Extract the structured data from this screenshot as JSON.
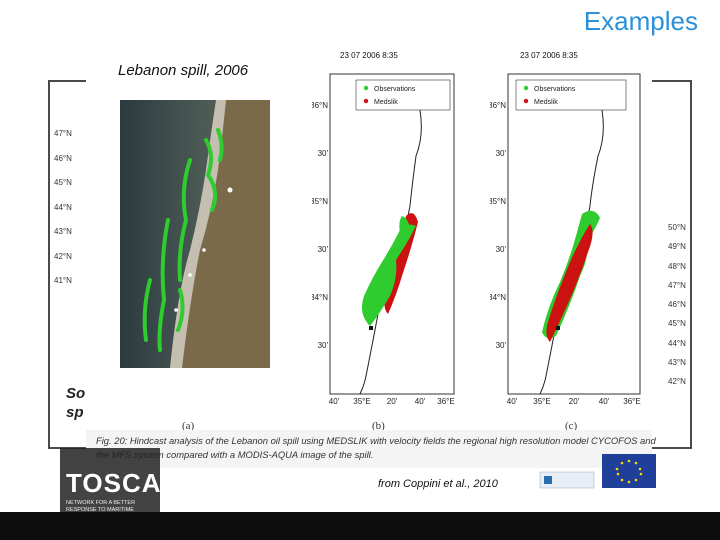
{
  "slide": {
    "title": "Examples",
    "citation": "from Coppini et al., 2010"
  },
  "background_figure": {
    "lat_left": [
      "47°N",
      "46°N",
      "45°N",
      "44°N",
      "43°N",
      "42°N",
      "41°N"
    ],
    "lat_right": [
      "50°N",
      "49°N",
      "48°N",
      "47°N",
      "46°N",
      "45°N",
      "44°N",
      "43°N",
      "42°N"
    ],
    "caption_fragment_line1": "So",
    "caption_fragment_line2": "sp"
  },
  "figure": {
    "photo_label": "Lebanon  spill,  2006",
    "panels": [
      {
        "timestamp": "23 07 2006 8:35",
        "legend": [
          "Observations",
          "Medslik"
        ],
        "lat_ticks": [
          "36°N",
          "30'",
          "35°N",
          "30'",
          "34°N",
          "30'"
        ],
        "lon_ticks": [
          "40'",
          "35°E",
          "20'",
          "40'",
          "36°E"
        ],
        "label": "(b)"
      },
      {
        "timestamp": "23 07 2006 8:35",
        "legend": [
          "Observations",
          "Medslik"
        ],
        "lat_ticks": [
          "36°N",
          "30'",
          "35°N",
          "30'",
          "34°N",
          "30'"
        ],
        "lon_ticks": [
          "40'",
          "35°E",
          "20'",
          "40'",
          "36°E"
        ],
        "label": "(c)"
      }
    ],
    "subfig_a": "(a)",
    "caption": "Fig. 20: Hindcast analysis of the Lebanon oil spill using MEDSLIK with velocity fields the regional high resolution model CYCOFOS and the MFS system compared with a MODIS-AQUA image of the spill."
  },
  "logo": {
    "word": "TOSCA",
    "tagline": "NETWORK FOR A BETTER RESPONSE TO MARITIME ACCIDENTS"
  },
  "colors": {
    "title": "#2b90d9",
    "observations": "#2ecc2e",
    "medslik": "#cc1111",
    "footer": "#0d0d0d"
  }
}
